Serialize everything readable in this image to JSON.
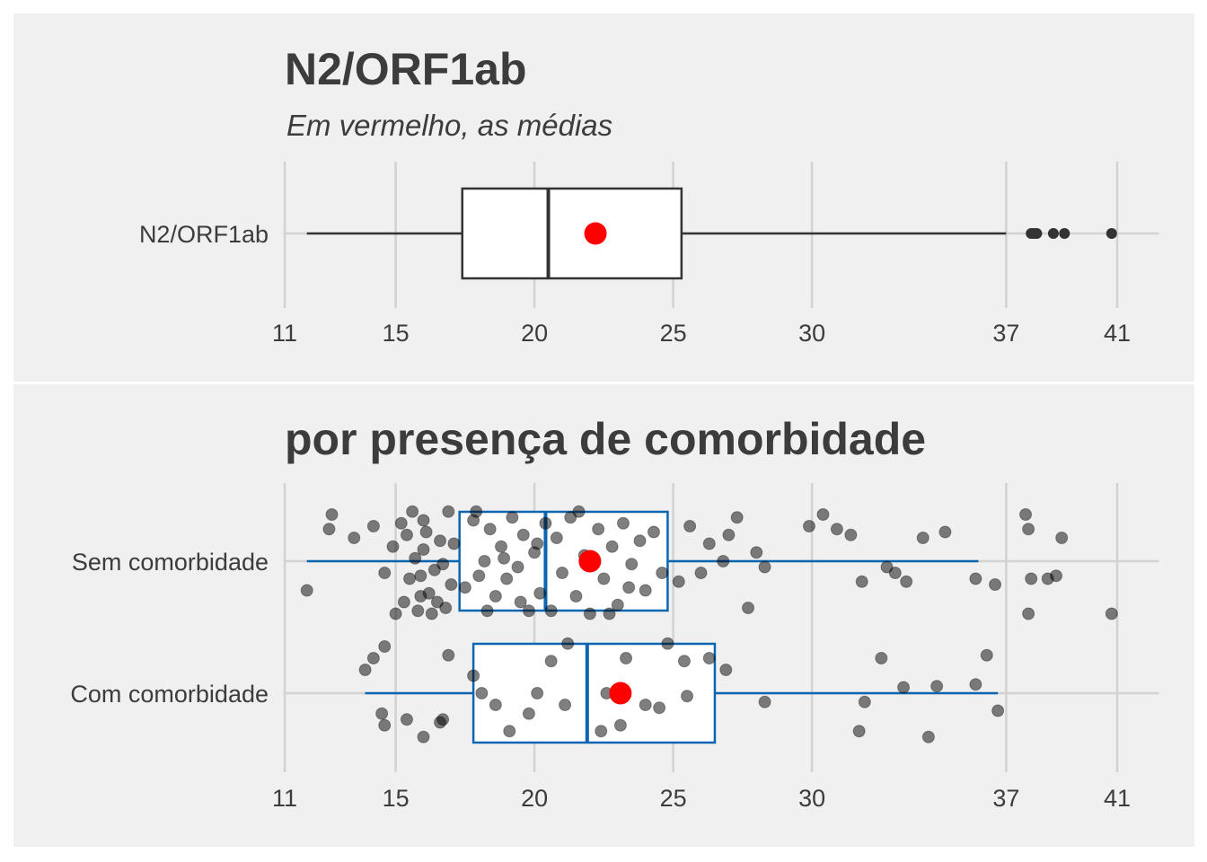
{
  "chart_data": [
    {
      "type": "boxplot",
      "title": "N2/ORF1ab",
      "subtitle": "Em vermelho, as médias",
      "xlabel": "",
      "ylabel": "",
      "xlim": [
        11,
        42.5
      ],
      "x_ticks": [
        11,
        15,
        20,
        25,
        30,
        37,
        41
      ],
      "grid": true,
      "categories": [
        "N2/ORF1ab"
      ],
      "boxes": [
        {
          "category": "N2/ORF1ab",
          "whisker_low": 11.8,
          "q1": 17.4,
          "median": 20.5,
          "q3": 25.3,
          "whisker_high": 37.0,
          "mean": 22.2,
          "outliers": [
            37.9,
            38.0,
            38.1,
            38.7,
            39.1,
            40.8
          ]
        }
      ],
      "colors": {
        "box_line": "#333333",
        "mean": "#ff0000"
      }
    },
    {
      "type": "boxplot",
      "title": "por presença de comorbidade",
      "xlabel": "",
      "ylabel": "",
      "xlim": [
        11,
        42.5
      ],
      "x_ticks": [
        11,
        15,
        20,
        25,
        30,
        37,
        41
      ],
      "grid": true,
      "categories": [
        "Sem comorbidade",
        "Com comorbidade"
      ],
      "boxes": [
        {
          "category": "Sem comorbidade",
          "whisker_low": 11.8,
          "q1": 17.3,
          "median": 20.4,
          "q3": 24.8,
          "whisker_high": 36.0,
          "mean": 22.0
        },
        {
          "category": "Com comorbidade",
          "whisker_low": 13.9,
          "q1": 17.8,
          "median": 21.9,
          "q3": 26.5,
          "whisker_high": 36.7,
          "mean": 23.1
        }
      ],
      "jitter_points": {
        "Sem comorbidade": [
          [
            11.8,
            0.5
          ],
          [
            12.6,
            -0.55
          ],
          [
            12.7,
            -0.8
          ],
          [
            13.5,
            -0.4
          ],
          [
            14.2,
            -0.6
          ],
          [
            14.6,
            0.2
          ],
          [
            14.9,
            -0.25
          ],
          [
            15.0,
            0.9
          ],
          [
            15.3,
            0.7
          ],
          [
            15.5,
            0.3
          ],
          [
            15.2,
            -0.65
          ],
          [
            15.8,
            0.85
          ],
          [
            15.7,
            -0.05
          ],
          [
            16.0,
            -0.7
          ],
          [
            16.2,
            0.55
          ],
          [
            16.4,
            0.15
          ],
          [
            16.6,
            -0.35
          ],
          [
            16.8,
            0.8
          ],
          [
            17.0,
            0.4
          ],
          [
            16.9,
            -0.85
          ],
          [
            15.6,
            -0.85
          ],
          [
            16.3,
            0.9
          ],
          [
            15.9,
            0.25
          ],
          [
            16.1,
            -0.5
          ],
          [
            16.7,
            0.05
          ],
          [
            17.1,
            -0.3
          ],
          [
            16.5,
            0.7
          ],
          [
            15.4,
            -0.45
          ],
          [
            15.9,
            0.6
          ],
          [
            16.0,
            -0.2
          ],
          [
            17.5,
            0.45
          ],
          [
            17.8,
            -0.7
          ],
          [
            18.0,
            0.25
          ],
          [
            18.2,
            0.0
          ],
          [
            18.4,
            -0.55
          ],
          [
            18.6,
            0.6
          ],
          [
            18.8,
            -0.25
          ],
          [
            19.0,
            0.3
          ],
          [
            19.2,
            -0.75
          ],
          [
            19.4,
            0.1
          ],
          [
            19.6,
            -0.45
          ],
          [
            19.8,
            0.85
          ],
          [
            20.0,
            -0.15
          ],
          [
            20.2,
            0.55
          ],
          [
            20.4,
            -0.65
          ],
          [
            17.9,
            -0.85
          ],
          [
            18.3,
            0.85
          ],
          [
            18.9,
            -0.05
          ],
          [
            19.5,
            0.7
          ],
          [
            20.1,
            -0.3
          ],
          [
            20.6,
            0.85
          ],
          [
            20.8,
            -0.4
          ],
          [
            21.0,
            0.2
          ],
          [
            21.3,
            -0.75
          ],
          [
            21.5,
            0.6
          ],
          [
            21.8,
            -0.1
          ],
          [
            22.0,
            0.9
          ],
          [
            22.3,
            -0.55
          ],
          [
            22.5,
            0.3
          ],
          [
            22.8,
            -0.25
          ],
          [
            23.0,
            0.75
          ],
          [
            23.2,
            -0.65
          ],
          [
            23.5,
            0.05
          ],
          [
            23.8,
            -0.35
          ],
          [
            24.0,
            0.5
          ],
          [
            24.3,
            -0.5
          ],
          [
            24.6,
            0.2
          ],
          [
            22.7,
            0.9
          ],
          [
            21.6,
            -0.85
          ],
          [
            23.4,
            0.45
          ],
          [
            25.2,
            0.35
          ],
          [
            25.6,
            -0.6
          ],
          [
            26.0,
            0.2
          ],
          [
            26.3,
            -0.3
          ],
          [
            26.8,
            0.0
          ],
          [
            27.0,
            -0.45
          ],
          [
            27.3,
            -0.75
          ],
          [
            27.7,
            0.8
          ],
          [
            28.0,
            -0.15
          ],
          [
            28.3,
            0.1
          ],
          [
            29.9,
            -0.6
          ],
          [
            30.4,
            -0.8
          ],
          [
            30.9,
            -0.55
          ],
          [
            31.4,
            -0.45
          ],
          [
            31.8,
            0.35
          ],
          [
            32.7,
            0.1
          ],
          [
            33.0,
            0.2
          ],
          [
            33.4,
            0.35
          ],
          [
            34.0,
            -0.4
          ],
          [
            34.8,
            -0.5
          ],
          [
            35.9,
            0.3
          ],
          [
            36.6,
            0.4
          ],
          [
            37.8,
            0.9
          ],
          [
            37.9,
            0.3
          ],
          [
            38.5,
            0.3
          ],
          [
            38.8,
            0.25
          ],
          [
            37.8,
            -0.55
          ],
          [
            37.7,
            -0.8
          ],
          [
            39.0,
            -0.4
          ],
          [
            40.8,
            0.9
          ]
        ],
        "Com comorbidade": [
          [
            13.9,
            -0.4
          ],
          [
            14.2,
            -0.6
          ],
          [
            14.5,
            0.35
          ],
          [
            14.6,
            -0.8
          ],
          [
            14.6,
            0.55
          ],
          [
            15.4,
            0.45
          ],
          [
            16.0,
            0.75
          ],
          [
            16.6,
            0.5
          ],
          [
            16.7,
            0.45
          ],
          [
            16.9,
            -0.65
          ],
          [
            17.8,
            -0.3
          ],
          [
            18.1,
            0.0
          ],
          [
            19.1,
            0.65
          ],
          [
            19.8,
            0.35
          ],
          [
            20.1,
            0.0
          ],
          [
            20.6,
            -0.55
          ],
          [
            21.1,
            0.2
          ],
          [
            21.2,
            -0.85
          ],
          [
            22.4,
            0.65
          ],
          [
            23.1,
            0.55
          ],
          [
            23.3,
            -0.6
          ],
          [
            24.0,
            0.2
          ],
          [
            24.5,
            0.25
          ],
          [
            24.8,
            -0.85
          ],
          [
            25.5,
            0.05
          ],
          [
            25.4,
            -0.55
          ],
          [
            26.3,
            -0.6
          ],
          [
            26.9,
            -0.4
          ],
          [
            28.3,
            0.15
          ],
          [
            31.7,
            0.65
          ],
          [
            31.9,
            0.15
          ],
          [
            32.5,
            -0.6
          ],
          [
            33.3,
            -0.1
          ],
          [
            34.2,
            0.75
          ],
          [
            34.5,
            -0.12
          ],
          [
            35.9,
            -0.15
          ],
          [
            36.3,
            -0.65
          ],
          [
            36.7,
            0.3
          ],
          [
            18.6,
            0.2
          ],
          [
            22.6,
            0.0
          ]
        ]
      },
      "colors": {
        "box_line": "#0a66b0",
        "mean": "#ff0000",
        "points": "#000000"
      }
    }
  ]
}
